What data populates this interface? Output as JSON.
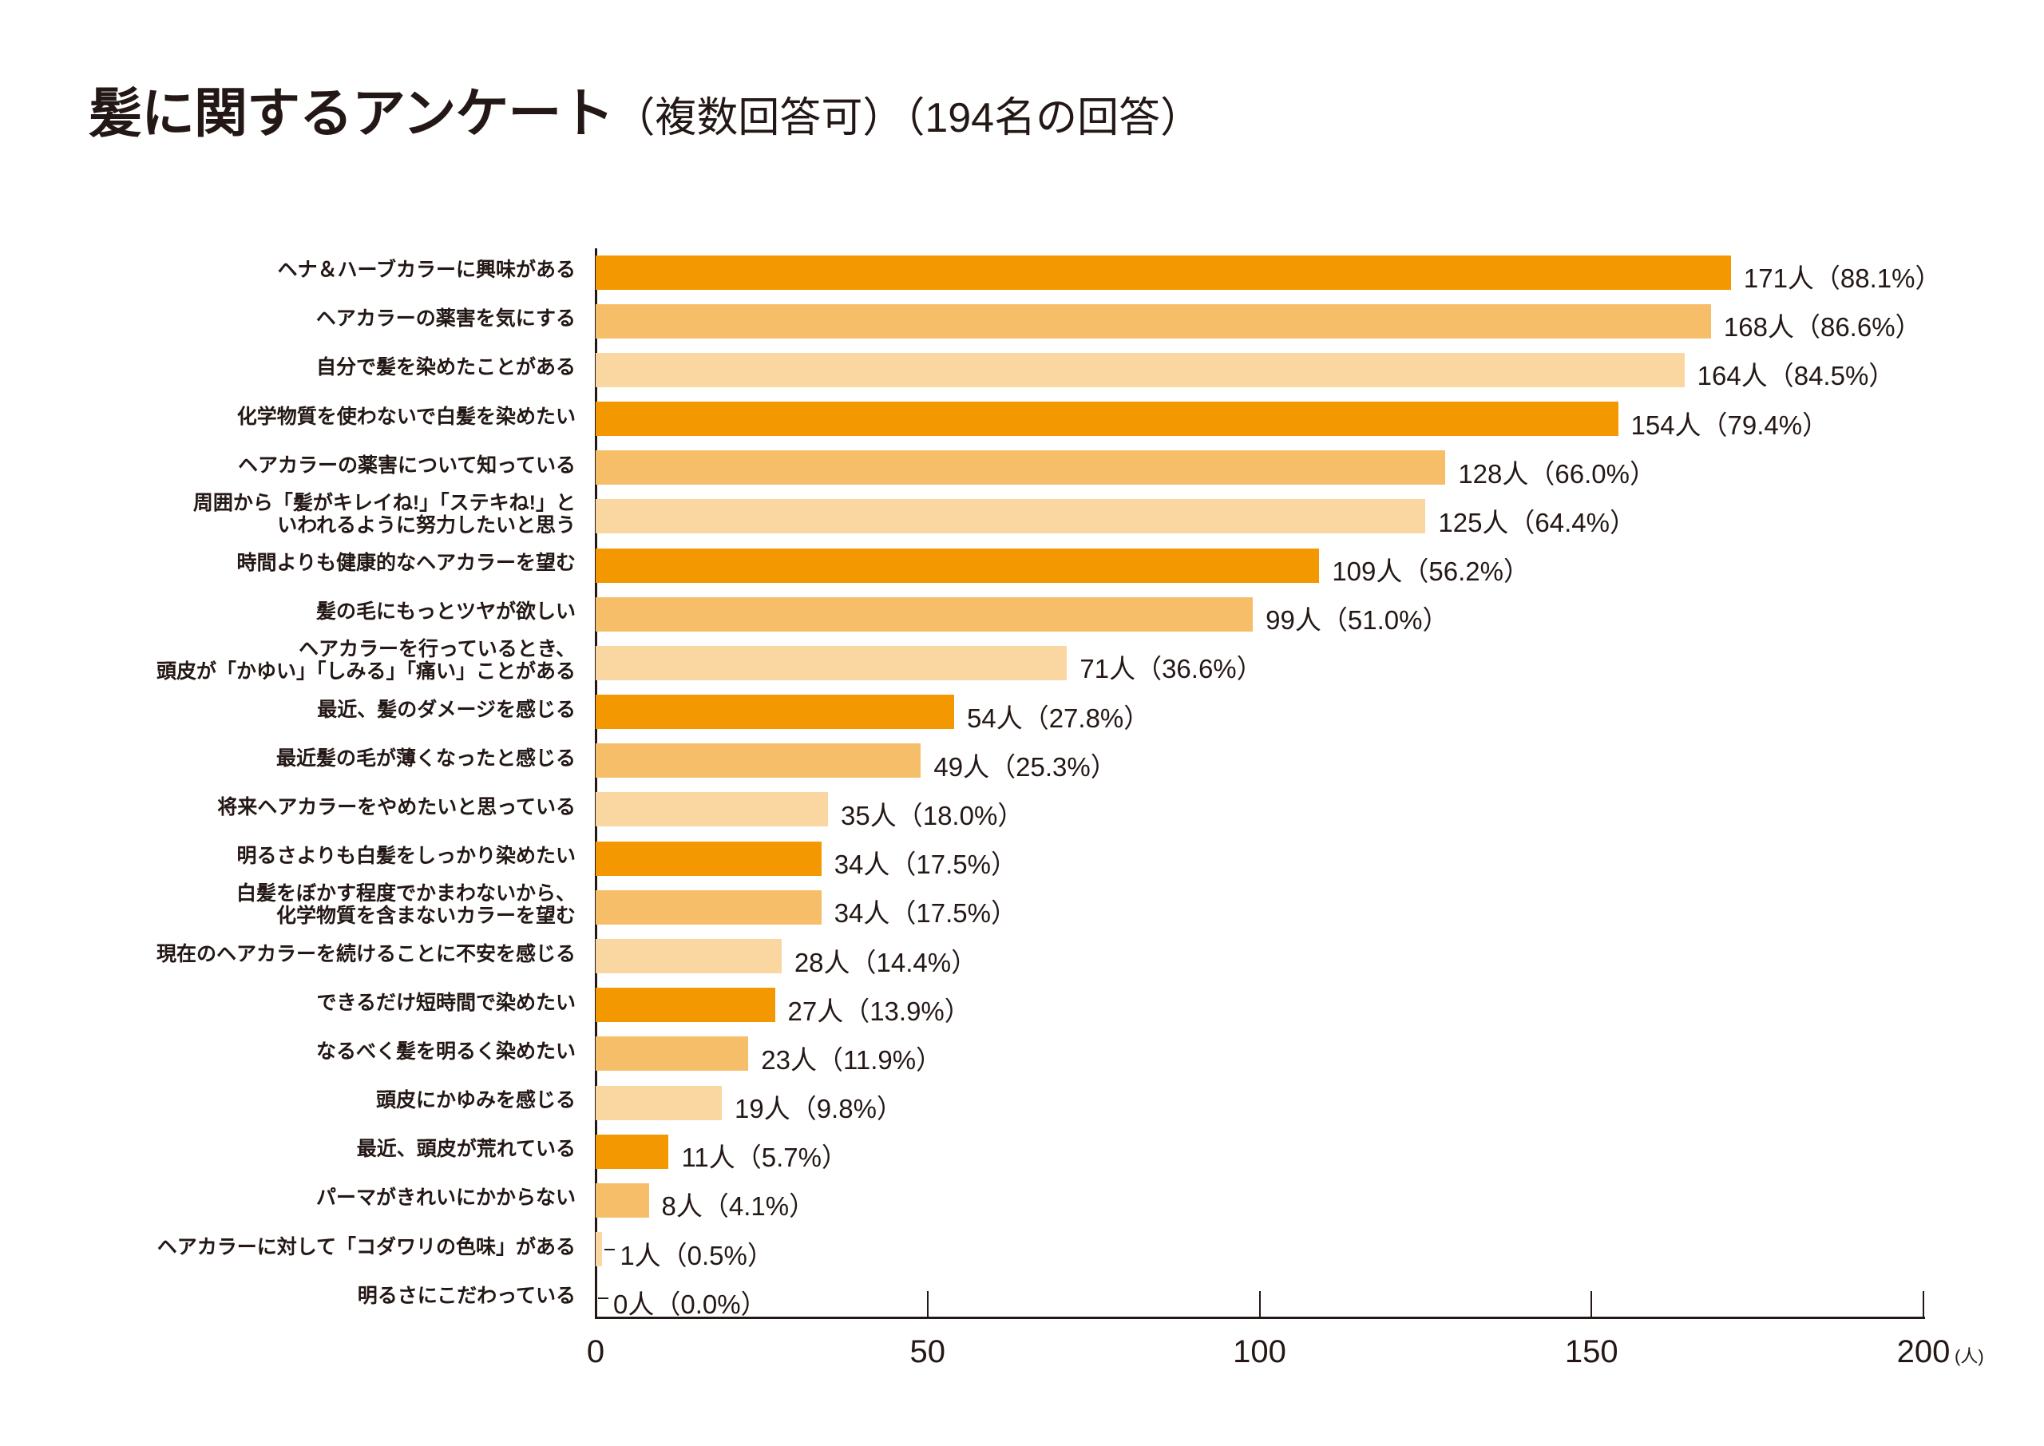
{
  "chart_data": {
    "type": "bar",
    "orientation": "horizontal",
    "title": "髪に関するアンケート",
    "subtitle": "（複数回答可）（194名の回答）",
    "categories": [
      "ヘナ＆ハーブカラーに興味がある",
      "ヘアカラーの薬害を気にする",
      "自分で髪を染めたことがある",
      "化学物質を使わないで白髪を染めたい",
      "ヘアカラーの薬害について知っている",
      "周囲から「髪がキレイね!」「ステキね!」と\nいわれるように努力したいと思う",
      "時間よりも健康的なヘアカラーを望む",
      "髪の毛にもっとツヤが欲しい",
      "ヘアカラーを行っているとき、\n頭皮が「かゆい」「しみる」「痛い」ことがある",
      "最近、髪のダメージを感じる",
      "最近髪の毛が薄くなったと感じる",
      "将来ヘアカラーをやめたいと思っている",
      "明るさよりも白髪をしっかり染めたい",
      "白髪をぼかす程度でかまわないから、\n化学物質を含まないカラーを望む",
      "現在のヘアカラーを続けることに不安を感じる",
      "できるだけ短時間で染めたい",
      "なるべく髪を明るく染めたい",
      "頭皮にかゆみを感じる",
      "最近、頭皮が荒れている",
      "パーマがきれいにかからない",
      "ヘアカラーに対して「コダワリの色味」がある",
      "明るさにこだわっている"
    ],
    "values": [
      171,
      168,
      164,
      154,
      128,
      125,
      109,
      99,
      71,
      54,
      49,
      35,
      34,
      34,
      28,
      27,
      23,
      19,
      11,
      8,
      1,
      0
    ],
    "percents": [
      88.1,
      86.6,
      84.5,
      79.4,
      66.0,
      64.4,
      56.2,
      51.0,
      36.6,
      27.8,
      25.3,
      18.0,
      17.5,
      17.5,
      14.4,
      13.9,
      11.9,
      9.8,
      5.7,
      4.1,
      0.5,
      0.0
    ],
    "value_labels": [
      "171人（88.1%）",
      "168人（86.6%）",
      "164人（84.5%）",
      "154人（79.4%）",
      "128人（66.0%）",
      "125人（64.4%）",
      "109人（56.2%）",
      "99人（51.0%）",
      "71人（36.6%）",
      "54人（27.8%）",
      "49人（25.3%）",
      "35人（18.0%）",
      "34人（17.5%）",
      "34人（17.5%）",
      "28人（14.4%）",
      "27人（13.9%）",
      "23人（11.9%）",
      "19人（9.8%）",
      "11人（5.7%）",
      "8人（4.1%）",
      "1人（0.5%）",
      "0人（0.0%）"
    ],
    "x_ticks": [
      "0",
      "50",
      "100",
      "150",
      "200"
    ],
    "x_unit": "(人)",
    "xlim": [
      0,
      200
    ],
    "grid": false,
    "colors": [
      "#F39800",
      "#F7BE6A",
      "#FAD6A0"
    ]
  }
}
